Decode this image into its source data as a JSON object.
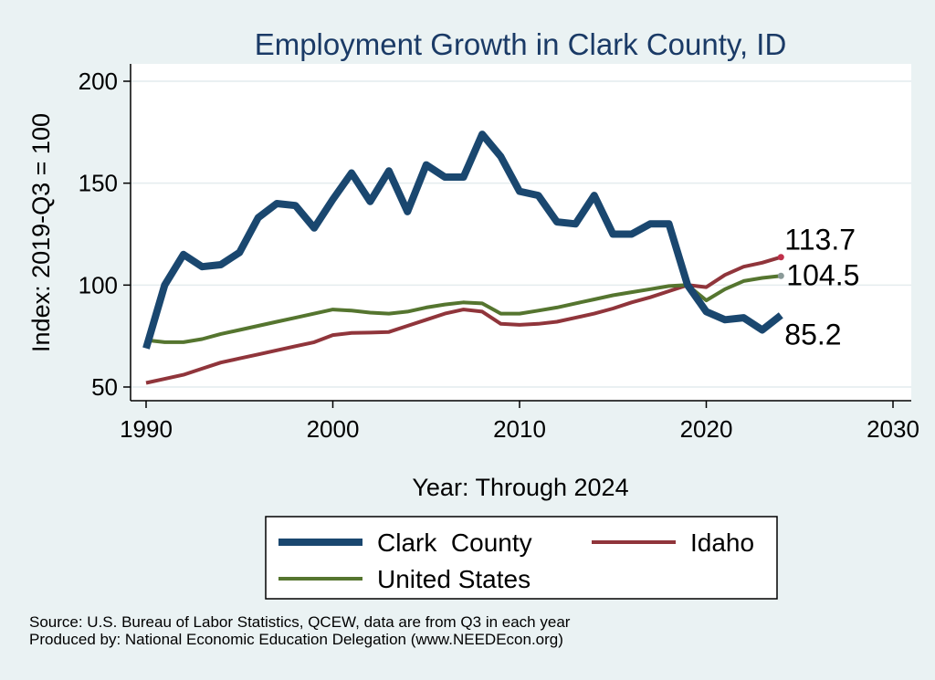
{
  "chart_data": {
    "type": "line",
    "title": "Employment Growth in Clark County, ID",
    "xlabel": "Year: Through 2024",
    "ylabel": "Index: 2019-Q3 = 100",
    "xlim": [
      1990,
      2030
    ],
    "ylim": [
      43,
      207
    ],
    "x_ticks": [
      1990,
      2000,
      2010,
      2020,
      2030
    ],
    "y_ticks": [
      50,
      100,
      150,
      200
    ],
    "grid": true,
    "legend_position": "bottom",
    "x": [
      1990,
      1991,
      1992,
      1993,
      1994,
      1995,
      1996,
      1997,
      1998,
      1999,
      2000,
      2001,
      2002,
      2003,
      2004,
      2005,
      2006,
      2007,
      2008,
      2009,
      2010,
      2011,
      2012,
      2013,
      2014,
      2015,
      2016,
      2017,
      2018,
      2019,
      2020,
      2021,
      2022,
      2023,
      2024
    ],
    "series": [
      {
        "name": "Clark  County",
        "color": "#1a476f",
        "values": [
          69,
          100,
          115,
          109,
          110,
          116,
          133,
          140,
          139,
          128,
          142,
          155,
          141,
          156,
          136,
          159,
          153,
          153,
          174,
          163,
          146,
          144,
          131,
          130,
          144,
          125,
          125,
          130,
          130,
          100,
          87,
          83,
          84,
          78,
          85.2
        ],
        "end_label": "85.2"
      },
      {
        "name": "Idaho",
        "color": "#90353b",
        "values": [
          52,
          54,
          56,
          59,
          62,
          64,
          66,
          68,
          70,
          72,
          75.5,
          76.5,
          76.7,
          77,
          80,
          83,
          86,
          88,
          87,
          81,
          80.5,
          81,
          82,
          84,
          86,
          88.5,
          91.5,
          94,
          97,
          100,
          99,
          105,
          109,
          111,
          113.7
        ],
        "end_label": "113.7"
      },
      {
        "name": "United States",
        "color": "#55752f",
        "values": [
          73,
          72,
          72,
          73.5,
          76,
          78,
          80,
          82,
          84,
          86,
          88,
          87.5,
          86.5,
          86,
          87,
          89,
          90.5,
          91.5,
          91,
          86,
          86,
          87.5,
          89,
          91,
          93,
          95,
          96.5,
          98,
          99.5,
          100,
          92.5,
          98,
          102,
          103.5,
          104.5
        ],
        "end_label": "104.5"
      }
    ]
  },
  "footer": {
    "source": "Source: U.S. Bureau of Labor Statistics, QCEW, data are from Q3 in each year",
    "produced_by": "Produced by: National Economic Education Delegation (www.NEEDEcon.org)"
  }
}
